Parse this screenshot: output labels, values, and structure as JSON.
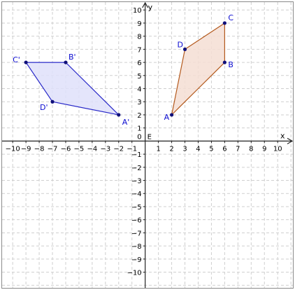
{
  "chart_data": {
    "type": "scatter",
    "xlim": [
      -10.8,
      11.15
    ],
    "ylim": [
      -11.2,
      10.6
    ],
    "grid": true,
    "axis_names": {
      "x": "x",
      "y": "y"
    },
    "origin_label": "0",
    "origin_point_label": "E",
    "ticks": {
      "x": [
        -10,
        -9,
        -8,
        -7,
        -6,
        -5,
        -4,
        -3,
        -2,
        -1,
        1,
        2,
        3,
        4,
        5,
        6,
        7,
        8,
        9,
        10
      ],
      "y": [
        -10,
        -9,
        -8,
        -7,
        -6,
        -5,
        -4,
        -3,
        -2,
        -1,
        1,
        2,
        3,
        4,
        5,
        6,
        7,
        8,
        9,
        10
      ]
    },
    "polygons": [
      {
        "id": "original",
        "fill": "#f5ded3",
        "stroke": "#b45a1e",
        "vertices": [
          {
            "label": "A",
            "x": 2,
            "y": 2
          },
          {
            "label": "B",
            "x": 6,
            "y": 6
          },
          {
            "label": "C",
            "x": 6,
            "y": 9
          },
          {
            "label": "D",
            "x": 3,
            "y": 7
          }
        ]
      },
      {
        "id": "image",
        "fill": "#dfe0fa",
        "stroke": "#2828c8",
        "vertices": [
          {
            "label": "A'",
            "x": -2,
            "y": 2
          },
          {
            "label": "B'",
            "x": -6,
            "y": 6
          },
          {
            "label": "C'",
            "x": -9,
            "y": 6
          },
          {
            "label": "D'",
            "x": -7,
            "y": 3
          }
        ]
      }
    ],
    "point_color": "#10107a",
    "label_color": "#0a0ad0"
  }
}
